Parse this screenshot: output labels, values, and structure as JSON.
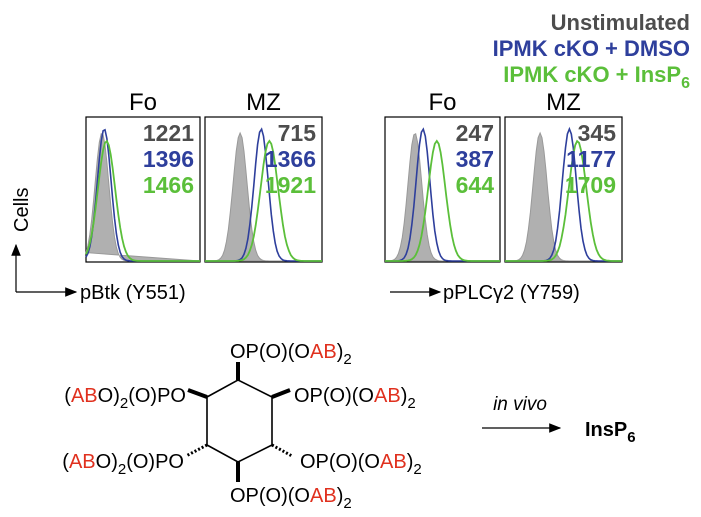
{
  "legend": [
    {
      "text": "Unstimulated",
      "color": "#4d4d4d"
    },
    {
      "text": "IPMK cKO + DMSO",
      "color": "#2e3f9c"
    },
    {
      "text": "IPMK cKO + InsP",
      "subscript": "6",
      "color": "#5bbf3a"
    }
  ],
  "panels": [
    {
      "title": "Fo",
      "values": [
        1221,
        1396,
        1466
      ]
    },
    {
      "title": "MZ",
      "values": [
        715,
        1366,
        1921
      ]
    },
    {
      "title": "Fo",
      "values": [
        247,
        387,
        644
      ]
    },
    {
      "title": "MZ",
      "values": [
        345,
        1177,
        1709
      ]
    }
  ],
  "y_axis_label": "Cells",
  "x_axis_labels": [
    "pBtk (Y551)",
    "pPLCγ2 (Y759)"
  ],
  "structure": {
    "highlight_color": "#e0301e",
    "substituents": [
      [
        {
          "text": "OP(O)(O"
        },
        {
          "text": "AB",
          "highlight": true
        },
        {
          "text": ")"
        },
        {
          "text": "2",
          "subscript": true
        }
      ],
      [
        {
          "text": "OP(O)(O"
        },
        {
          "text": "AB",
          "highlight": true
        },
        {
          "text": ")"
        },
        {
          "text": "2",
          "subscript": true
        }
      ],
      [
        {
          "text": "OP(O)(O"
        },
        {
          "text": "AB",
          "highlight": true
        },
        {
          "text": ")"
        },
        {
          "text": "2",
          "subscript": true
        }
      ],
      [
        {
          "text": "OP(O)(O"
        },
        {
          "text": "AB",
          "highlight": true
        },
        {
          "text": ")"
        },
        {
          "text": "2",
          "subscript": true
        }
      ],
      [
        {
          "text": "("
        },
        {
          "text": "AB",
          "highlight": true
        },
        {
          "text": "O)"
        },
        {
          "text": "2",
          "subscript": true
        },
        {
          "text": "(O)PO"
        }
      ],
      [
        {
          "text": "("
        },
        {
          "text": "AB",
          "highlight": true
        },
        {
          "text": "O)"
        },
        {
          "text": "2",
          "subscript": true
        },
        {
          "text": "(O)PO"
        }
      ]
    ]
  },
  "reaction": {
    "condition": "in vivo",
    "product": "InsP",
    "product_subscript": "6"
  }
}
